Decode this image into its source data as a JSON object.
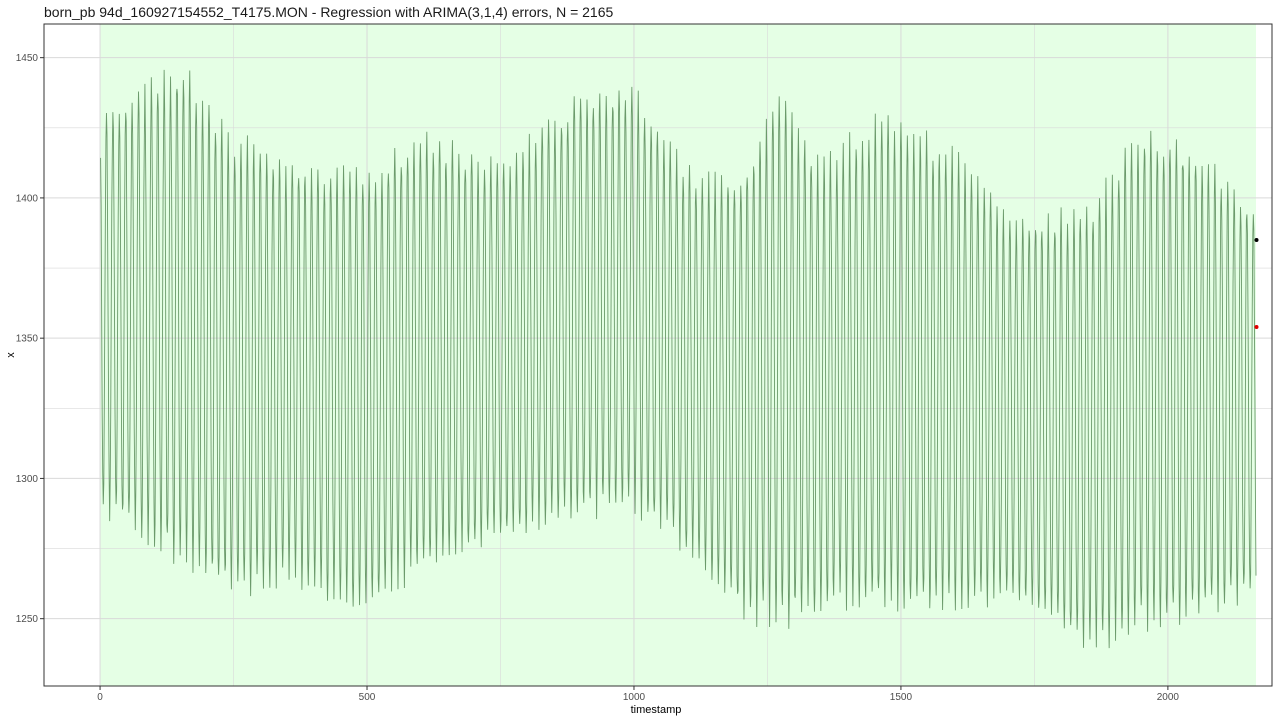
{
  "colors": {
    "panel_border": "#333333",
    "grid": "#d9d9d9",
    "highlight": "#e5ffe5",
    "series": "#6b9a6b",
    "marker_last": "#000000",
    "marker_forecast": "#e00000"
  },
  "chart_data": {
    "type": "line",
    "title": "born_pb 94d_160927154552_T4175.MON - Regression with ARIMA(3,1,4) errors, N = 2165",
    "xlabel": "timestamp",
    "ylabel": "x",
    "xlim": [
      -105,
      2195
    ],
    "ylim": [
      1226,
      1462
    ],
    "x_ticks": [
      0,
      500,
      1000,
      1500,
      2000
    ],
    "y_ticks": [
      1250,
      1300,
      1350,
      1400,
      1450
    ],
    "x_tick_labels": [
      "0",
      "500",
      "1000",
      "1500",
      "2000"
    ],
    "y_tick_labels": [
      "1250",
      "1300",
      "1350",
      "1400",
      "1450"
    ],
    "grid": true,
    "highlight_region": {
      "x0": 1,
      "x1": 2165
    },
    "series": [
      {
        "n": 2165,
        "oscillation_period": 12,
        "envelope": {
          "x": [
            0,
            80,
            150,
            250,
            350,
            500,
            600,
            750,
            900,
            1000,
            1100,
            1200,
            1280,
            1350,
            1450,
            1600,
            1700,
            1850,
            1950,
            2050,
            2165
          ],
          "high": [
            1432,
            1442,
            1450,
            1425,
            1415,
            1412,
            1425,
            1414,
            1440,
            1442,
            1412,
            1410,
            1444,
            1414,
            1432,
            1420,
            1395,
            1398,
            1428,
            1420,
            1398
          ],
          "low": [
            1287,
            1275,
            1268,
            1255,
            1262,
            1250,
            1265,
            1276,
            1285,
            1286,
            1272,
            1248,
            1245,
            1250,
            1252,
            1249,
            1256,
            1236,
            1244,
            1248,
            1256
          ]
        }
      }
    ],
    "markers": [
      {
        "x": 2166,
        "y": 1385,
        "role": "last observed"
      },
      {
        "x": 2166,
        "y": 1354,
        "role": "fitted/forecast"
      }
    ]
  }
}
